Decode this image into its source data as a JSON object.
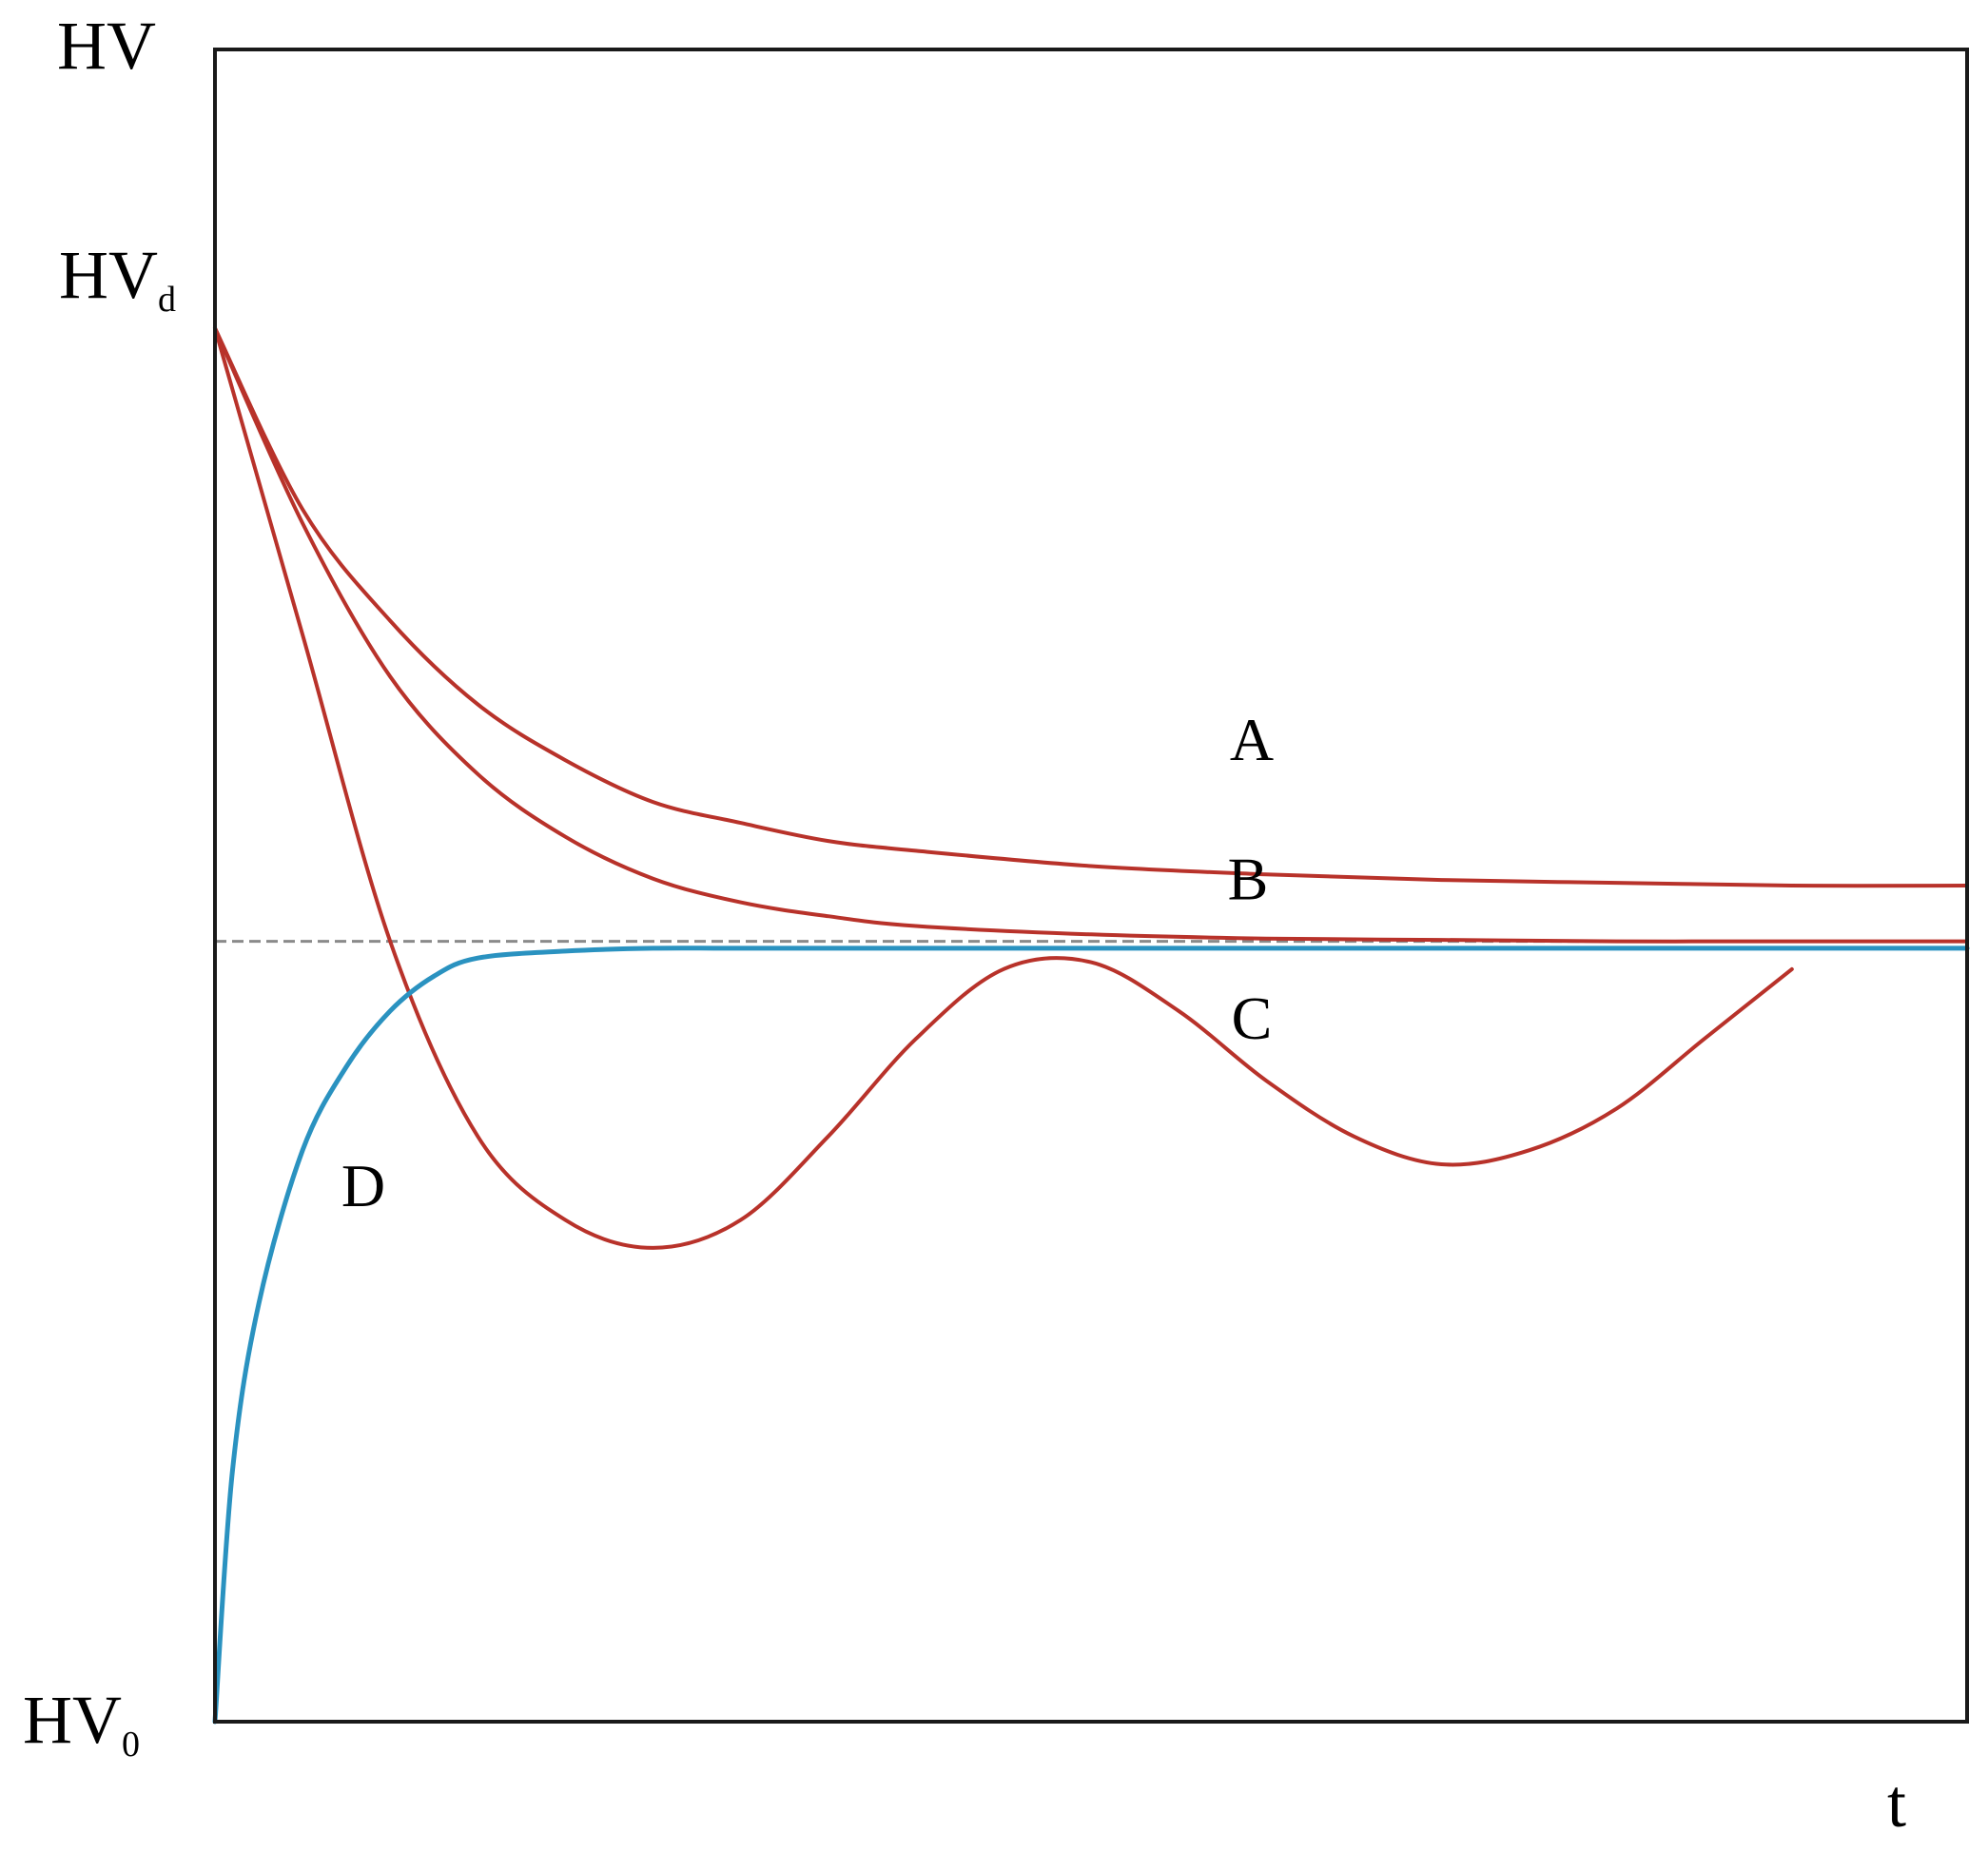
{
  "chart_data": {
    "type": "line",
    "title": "",
    "xlabel": "t",
    "ylabel": "HV",
    "y_tick_labels": [
      {
        "value": 0,
        "main": "HV",
        "sub": "0"
      },
      {
        "value": 1,
        "main": "HV",
        "sub": "d"
      }
    ],
    "xlim": [
      0,
      10
    ],
    "ylim": [
      0,
      1.2
    ],
    "grid": false,
    "reference_line": {
      "y": 0.56,
      "style": "dashed",
      "color": "#8a8a8a"
    },
    "series": [
      {
        "name": "A",
        "color": "#b8322a",
        "points": [
          [
            0,
            1
          ],
          [
            0.5,
            0.87
          ],
          [
            1,
            0.79
          ],
          [
            1.5,
            0.73
          ],
          [
            2,
            0.69
          ],
          [
            2.5,
            0.66
          ],
          [
            3,
            0.645
          ],
          [
            3.5,
            0.632
          ],
          [
            4,
            0.625
          ],
          [
            5,
            0.614
          ],
          [
            6,
            0.608
          ],
          [
            7,
            0.604
          ],
          [
            8,
            0.602
          ],
          [
            9,
            0.6
          ],
          [
            10,
            0.6
          ]
        ]
      },
      {
        "name": "B",
        "color": "#b8322a",
        "points": [
          [
            0,
            1
          ],
          [
            0.5,
            0.86
          ],
          [
            1,
            0.75
          ],
          [
            1.5,
            0.68
          ],
          [
            2,
            0.635
          ],
          [
            2.5,
            0.605
          ],
          [
            3,
            0.588
          ],
          [
            3.5,
            0.578
          ],
          [
            4,
            0.571
          ],
          [
            5,
            0.565
          ],
          [
            6,
            0.562
          ],
          [
            7,
            0.561
          ],
          [
            8,
            0.56
          ],
          [
            9,
            0.56
          ],
          [
            10,
            0.56
          ]
        ]
      },
      {
        "name": "C",
        "color": "#b8322a",
        "points": [
          [
            0,
            1
          ],
          [
            0.5,
            0.78
          ],
          [
            1,
            0.56
          ],
          [
            1.5,
            0.42
          ],
          [
            2,
            0.36
          ],
          [
            2.5,
            0.34
          ],
          [
            3,
            0.36
          ],
          [
            3.5,
            0.42
          ],
          [
            4,
            0.49
          ],
          [
            4.5,
            0.54
          ],
          [
            5,
            0.545
          ],
          [
            5.5,
            0.51
          ],
          [
            6,
            0.46
          ],
          [
            6.5,
            0.42
          ],
          [
            7,
            0.4
          ],
          [
            7.5,
            0.41
          ],
          [
            8,
            0.44
          ],
          [
            8.5,
            0.49
          ],
          [
            9,
            0.54
          ]
        ]
      },
      {
        "name": "D",
        "color": "#2a92c0",
        "points": [
          [
            0,
            0
          ],
          [
            0.1,
            0.18
          ],
          [
            0.25,
            0.3
          ],
          [
            0.5,
            0.41
          ],
          [
            0.75,
            0.47
          ],
          [
            1,
            0.51
          ],
          [
            1.25,
            0.535
          ],
          [
            1.5,
            0.548
          ],
          [
            2,
            0.553
          ],
          [
            2.5,
            0.555
          ],
          [
            3,
            0.555
          ],
          [
            4,
            0.555
          ],
          [
            6,
            0.555
          ],
          [
            8,
            0.555
          ],
          [
            10,
            0.555
          ]
        ]
      }
    ]
  }
}
